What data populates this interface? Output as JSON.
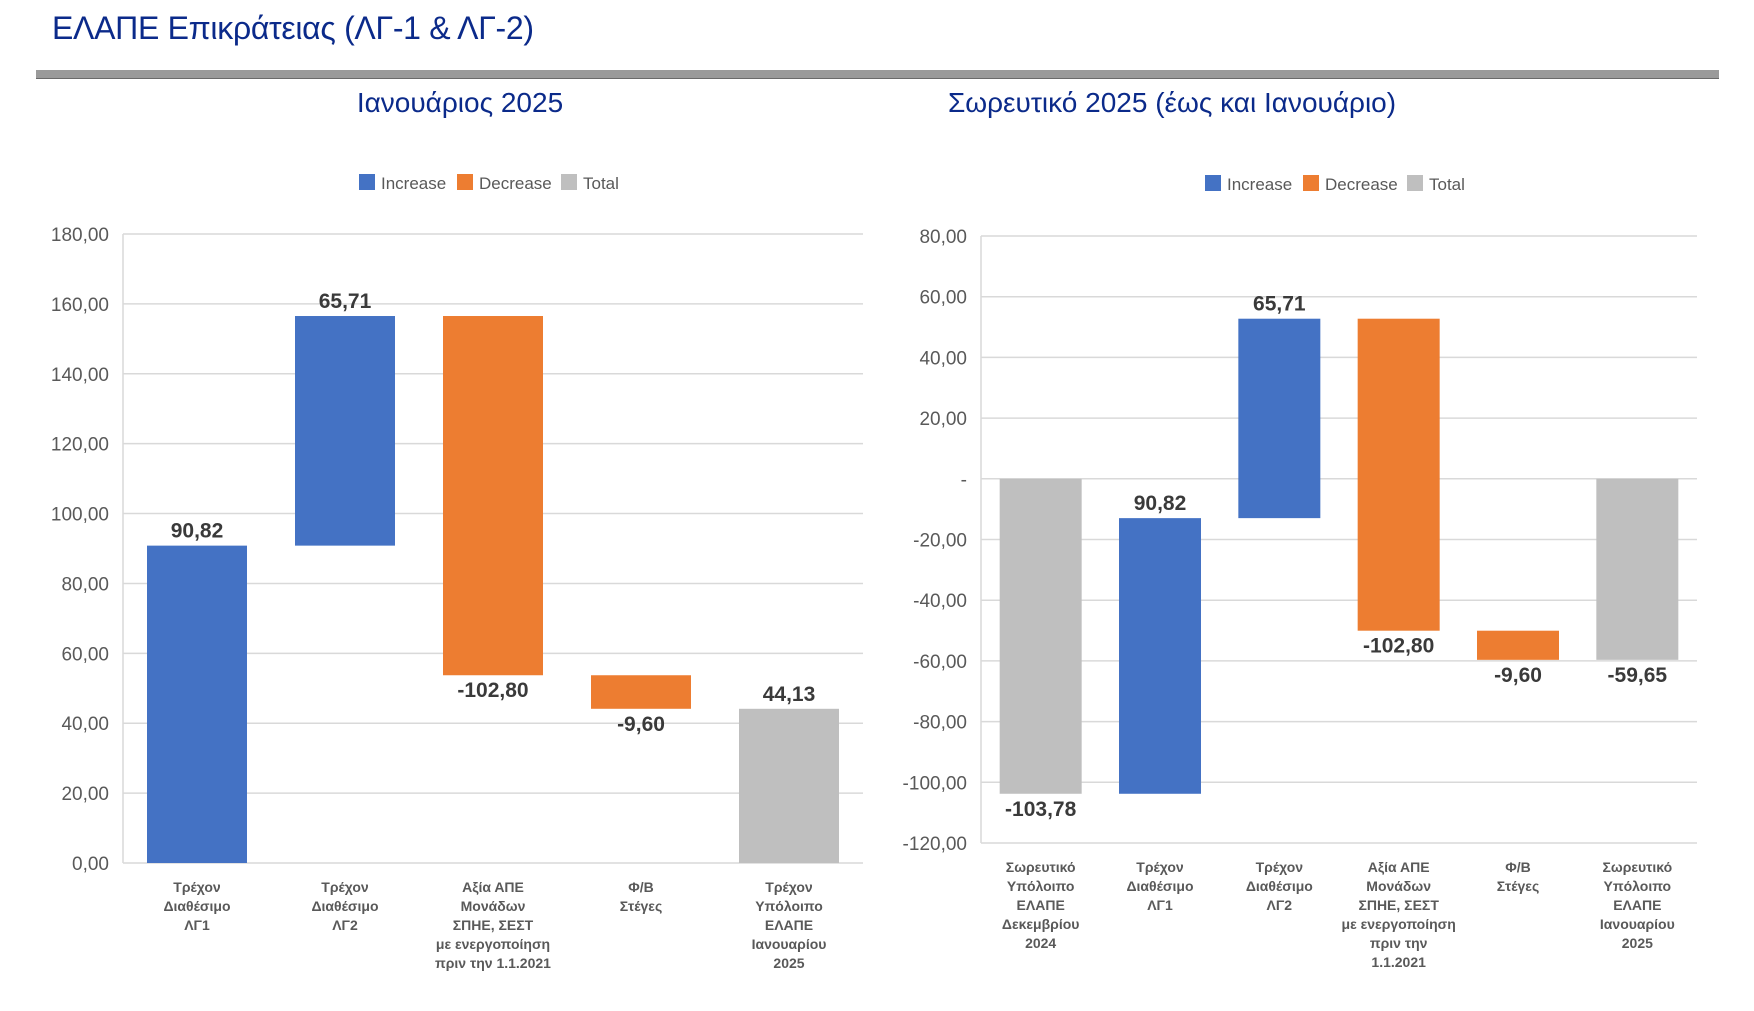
{
  "page": {
    "title": "ΕΛΑΠΕ Επικράτειας (ΛΓ-1 & ΛΓ-2)"
  },
  "colors": {
    "increase": "#4472C4",
    "decrease": "#ED7D31",
    "total": "#BFBFBF",
    "title": "#0b2a8a",
    "grid": "#d9d9d9"
  },
  "chart_data": [
    {
      "type": "waterfall",
      "title": "Ιανουάριος 2025",
      "legend": [
        "Increase",
        "Decrease",
        "Total"
      ],
      "legend_position": "top",
      "ylim": [
        0,
        180
      ],
      "yticks": [
        0,
        20,
        40,
        60,
        80,
        100,
        120,
        140,
        160,
        180
      ],
      "ytick_labels": [
        "0,00",
        "20,00",
        "40,00",
        "60,00",
        "80,00",
        "100,00",
        "120,00",
        "140,00",
        "160,00",
        "180,00"
      ],
      "grid": true,
      "categories": [
        [
          "Τρέχον",
          "Διαθέσιμο",
          "ΛΓ1"
        ],
        [
          "Τρέχον",
          "Διαθέσιμο",
          "ΛΓ2"
        ],
        [
          "Αξία ΑΠΕ",
          "Μονάδων",
          "ΣΠΗΕ, ΣΕΣΤ",
          "με ενεργοποίηση",
          "πριν την 1.1.2021"
        ],
        [
          "Φ/Β",
          "Στέγες"
        ],
        [
          "Τρέχον",
          "Υπόλοιπο",
          "ΕΛΑΠΕ",
          "Ιανουαρίου",
          "2025"
        ]
      ],
      "values": [
        90.82,
        65.71,
        -102.8,
        -9.6,
        44.13
      ],
      "kinds": [
        "increase",
        "increase",
        "decrease",
        "decrease",
        "total"
      ],
      "labels": [
        "90,82",
        "65,71",
        "-102,80",
        "-9,60",
        "44,13"
      ]
    },
    {
      "type": "waterfall",
      "title": "Σωρευτικό 2025 (έως και Ιανουάριο)",
      "legend": [
        "Increase",
        "Decrease",
        "Total"
      ],
      "legend_position": "top",
      "ylim": [
        -120,
        80
      ],
      "yticks": [
        -120,
        -100,
        -80,
        -60,
        -40,
        -20,
        0,
        20,
        40,
        60,
        80
      ],
      "ytick_labels": [
        "-120,00",
        "-100,00",
        "-80,00",
        "-60,00",
        "-40,00",
        "-20,00",
        "-",
        "20,00",
        "40,00",
        "60,00",
        "80,00"
      ],
      "grid": true,
      "categories": [
        [
          "Σωρευτικό",
          "Υπόλοιπο",
          "ΕΛΑΠΕ",
          "Δεκεμβρίου",
          "2024"
        ],
        [
          "Τρέχον",
          "Διαθέσιμο",
          "ΛΓ1"
        ],
        [
          "Τρέχον",
          "Διαθέσιμο",
          "ΛΓ2"
        ],
        [
          "Αξία ΑΠΕ",
          "Μονάδων",
          "ΣΠΗΕ, ΣΕΣΤ",
          "με ενεργοποίηση",
          "πριν την",
          "1.1.2021"
        ],
        [
          "Φ/Β",
          "Στέγες"
        ],
        [
          "Σωρευτικό",
          "Υπόλοιπο",
          "ΕΛΑΠΕ",
          "Ιανουαρίου",
          "2025"
        ]
      ],
      "values": [
        -103.78,
        90.82,
        65.71,
        -102.8,
        -9.6,
        -59.65
      ],
      "kinds": [
        "total",
        "increase",
        "increase",
        "decrease",
        "decrease",
        "total"
      ],
      "labels": [
        "-103,78",
        "90,82",
        "65,71",
        "-102,80",
        "-9,60",
        "-59,65"
      ]
    }
  ]
}
